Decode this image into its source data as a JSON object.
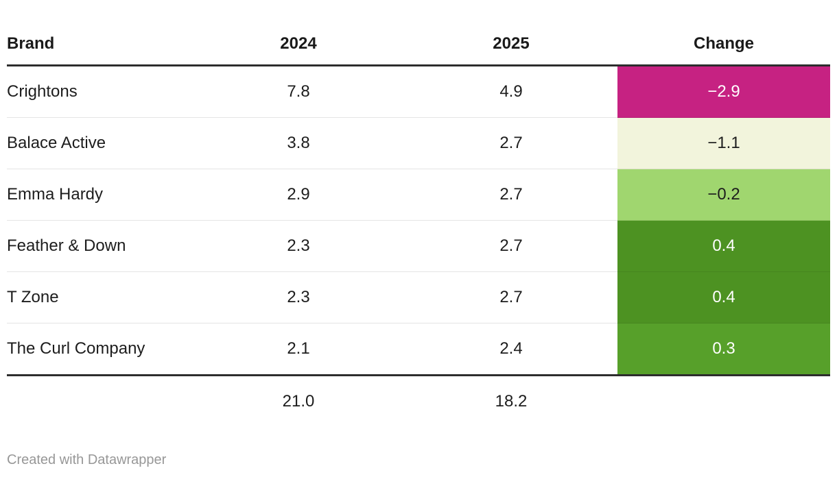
{
  "chart_data": {
    "type": "table",
    "columns": [
      "Brand",
      "2024",
      "2025",
      "Change"
    ],
    "rows": [
      [
        "Crightons",
        7.8,
        4.9,
        -2.9
      ],
      [
        "Balace Active",
        3.8,
        2.7,
        -1.1
      ],
      [
        "Emma Hardy",
        2.9,
        2.7,
        -0.2
      ],
      [
        "Feather & Down",
        2.3,
        2.7,
        0.4
      ],
      [
        "T Zone",
        2.3,
        2.7,
        0.4
      ],
      [
        "The Curl Company",
        2.1,
        2.4,
        0.3
      ]
    ],
    "totals_row": [
      null,
      21.0,
      18.2,
      null
    ],
    "layout_hints": {
      "change_column_style": "heatmap",
      "number_alignment": "center",
      "brand_alignment": "left"
    }
  },
  "table": {
    "headers": {
      "brand": "Brand",
      "y2024": "2024",
      "y2025": "2025",
      "change": "Change"
    },
    "rows": [
      {
        "brand": "Crightons",
        "y2024": "7.8",
        "y2025": "4.9",
        "change": "−2.9",
        "change_bg": "#c62282",
        "change_fg": "#ffffff"
      },
      {
        "brand": "Balace Active",
        "y2024": "3.8",
        "y2025": "2.7",
        "change": "−1.1",
        "change_bg": "#f2f4dc",
        "change_fg": "#1d1d1d"
      },
      {
        "brand": "Emma Hardy",
        "y2024": "2.9",
        "y2025": "2.7",
        "change": "−0.2",
        "change_bg": "#a0d66f",
        "change_fg": "#1d1d1d"
      },
      {
        "brand": "Feather & Down",
        "y2024": "2.3",
        "y2025": "2.7",
        "change": "0.4",
        "change_bg": "#4d9222",
        "change_fg": "#ffffff"
      },
      {
        "brand": "T Zone",
        "y2024": "2.3",
        "y2025": "2.7",
        "change": "0.4",
        "change_bg": "#4d9222",
        "change_fg": "#ffffff"
      },
      {
        "brand": "The Curl Company",
        "y2024": "2.1",
        "y2025": "2.4",
        "change": "0.3",
        "change_bg": "#57a02a",
        "change_fg": "#ffffff"
      }
    ],
    "totals": {
      "y2024": "21.0",
      "y2025": "18.2"
    }
  },
  "footer": {
    "credit": "Created with Datawrapper"
  },
  "colors": {
    "text": "#1d1d1d",
    "header_rule": "#2d2d2d",
    "row_separator": "#e4e4e4",
    "credit_text": "#979797",
    "heatmap_negative_strong": "#c62282",
    "heatmap_near_zero_neg": "#f2f4dc",
    "heatmap_small_neg": "#a0d66f",
    "heatmap_positive_strong": "#4d9222",
    "heatmap_positive_medium": "#57a02a"
  }
}
